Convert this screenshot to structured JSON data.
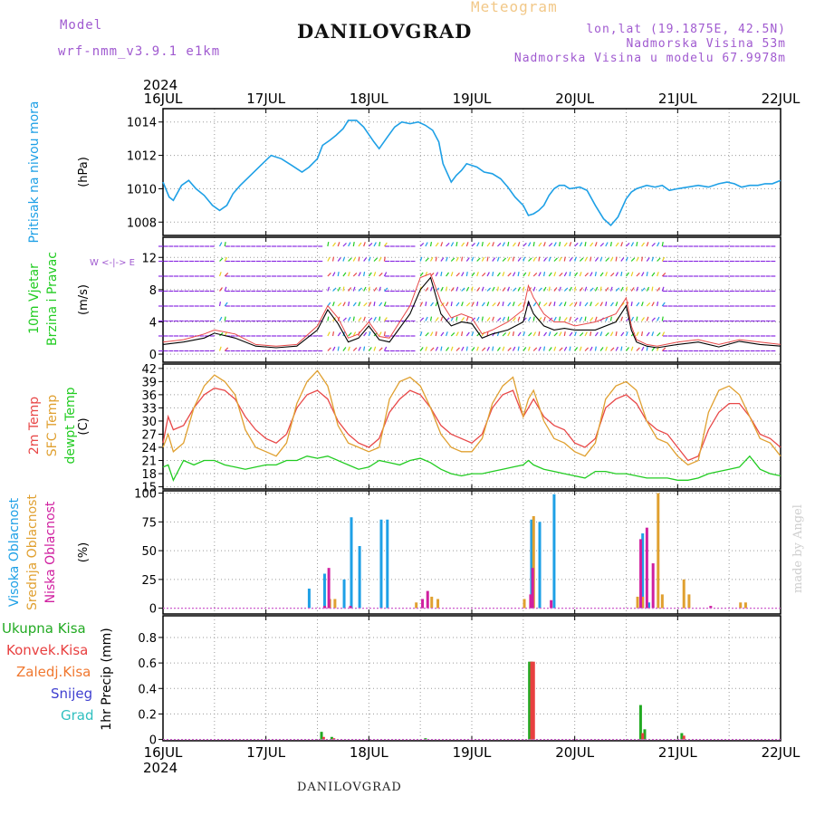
{
  "header": {
    "model_label": "Model",
    "model_name": "wrf-nmm_v3.9.1 e1km",
    "title": "DANILOVGRAD",
    "subtitle": "Meteogram",
    "coords": "lon,lat (19.1875E, 42.5N)",
    "elevation": "Nadmorska Visina 53m",
    "model_elevation": "Nadmorska Visina u modelu 67.9978m"
  },
  "footer": {
    "station": "DANILOVGRAD",
    "credit": "made by Angel"
  },
  "colors": {
    "pressure": "#1ea0e6",
    "temp2m": "#e84848",
    "sfc": "#e0a030",
    "dewpt": "#22cc22",
    "high": "#1ea0e6",
    "mid": "#e0a030",
    "low": "#d020a0",
    "total": "#22aa22",
    "conv": "#e84040",
    "frozen": "#f07830",
    "snow": "#4040d0",
    "hail": "#30c0c0"
  },
  "chart_data": [
    {
      "type": "line",
      "panel": "pressure",
      "ylabel_lines": [
        "Pritisak na nivou mora"
      ],
      "unit": "(hPa)",
      "x_ticks": [
        "16JUL",
        "17JUL",
        "18JUL",
        "19JUL",
        "20JUL",
        "21JUL",
        "22JUL"
      ],
      "year": "2024",
      "yticks": [
        "1008",
        "1010",
        "1012",
        "1014"
      ],
      "ylim": [
        1007.2,
        1014.8
      ],
      "x_days": [
        0,
        0.06,
        0.1,
        0.18,
        0.25,
        0.32,
        0.4,
        0.48,
        0.55,
        0.62,
        0.68,
        0.75,
        0.85,
        0.95,
        1.05,
        1.15,
        1.25,
        1.3,
        1.35,
        1.42,
        1.5,
        1.55,
        1.62,
        1.68,
        1.75,
        1.8,
        1.88,
        1.95,
        2.05,
        2.1,
        2.18,
        2.25,
        2.32,
        2.4,
        2.48,
        2.55,
        2.62,
        2.68,
        2.72,
        2.8,
        2.85,
        2.9,
        2.95,
        3.05,
        3.12,
        3.2,
        3.28,
        3.35,
        3.42,
        3.5,
        3.55,
        3.6,
        3.65,
        3.7,
        3.75,
        3.8,
        3.85,
        3.9,
        3.95,
        4.05,
        4.12,
        4.2,
        4.28,
        4.35,
        4.42,
        4.5,
        4.55,
        4.6,
        4.7,
        4.78,
        4.85,
        4.92,
        5.0,
        5.1,
        5.2,
        5.3,
        5.4,
        5.48,
        5.55,
        5.62,
        5.7,
        5.78,
        5.85,
        5.92,
        6.0
      ],
      "values": [
        1010.4,
        1009.5,
        1009.3,
        1010.2,
        1010.5,
        1010.0,
        1009.6,
        1009.0,
        1008.7,
        1009.0,
        1009.7,
        1010.2,
        1010.8,
        1011.4,
        1012.0,
        1011.8,
        1011.4,
        1011.2,
        1011.0,
        1011.3,
        1011.8,
        1012.6,
        1012.9,
        1013.2,
        1013.6,
        1014.1,
        1014.1,
        1013.7,
        1012.8,
        1012.4,
        1013.1,
        1013.7,
        1014.0,
        1013.9,
        1014.0,
        1013.8,
        1013.5,
        1012.8,
        1011.5,
        1010.4,
        1010.8,
        1011.1,
        1011.5,
        1011.3,
        1011.0,
        1010.9,
        1010.6,
        1010.1,
        1009.5,
        1009.0,
        1008.4,
        1008.5,
        1008.7,
        1009.0,
        1009.6,
        1010.0,
        1010.2,
        1010.2,
        1010.0,
        1010.1,
        1009.9,
        1009.0,
        1008.2,
        1007.8,
        1008.3,
        1009.4,
        1009.8,
        1010.0,
        1010.2,
        1010.1,
        1010.2,
        1009.9,
        1010.0,
        1010.1,
        1010.2,
        1010.1,
        1010.3,
        1010.4,
        1010.3,
        1010.1,
        1010.2,
        1010.2,
        1010.3,
        1010.3,
        1010.5
      ]
    },
    {
      "type": "wind",
      "panel": "wind",
      "ylabel_lines": [
        "10m Vjetar",
        "Brzina i Pravac"
      ],
      "unit": "(m/s)",
      "compass": "W <-|-> E",
      "yticks": [
        "0",
        "4",
        "8",
        "12"
      ],
      "ylim": [
        -1,
        14.5
      ],
      "x_days": [
        0,
        0.2,
        0.4,
        0.5,
        0.7,
        0.9,
        1.1,
        1.3,
        1.5,
        1.6,
        1.7,
        1.8,
        1.9,
        2.0,
        2.1,
        2.2,
        2.4,
        2.5,
        2.6,
        2.7,
        2.8,
        2.9,
        3.0,
        3.1,
        3.2,
        3.35,
        3.5,
        3.55,
        3.6,
        3.7,
        3.8,
        3.9,
        4.0,
        4.2,
        4.4,
        4.5,
        4.55,
        4.6,
        4.7,
        4.8,
        5.0,
        5.2,
        5.4,
        5.6,
        5.8,
        6.0
      ],
      "speed": [
        1.2,
        1.5,
        2.0,
        2.6,
        2.0,
        1.0,
        0.8,
        1.0,
        3.0,
        5.5,
        3.8,
        1.5,
        2.0,
        3.5,
        1.8,
        1.5,
        5.0,
        8.0,
        9.5,
        5.0,
        3.5,
        4.0,
        3.8,
        2.0,
        2.5,
        3.0,
        4.0,
        6.5,
        5.0,
        3.5,
        3.0,
        3.2,
        3.0,
        3.0,
        4.0,
        6.0,
        3.0,
        1.5,
        1.0,
        0.8,
        1.2,
        1.5,
        0.9,
        1.6,
        1.2,
        1.0
      ],
      "gust": [
        1.5,
        1.8,
        2.5,
        3.0,
        2.5,
        1.2,
        1.0,
        1.2,
        3.5,
        6.0,
        4.5,
        2.0,
        2.5,
        4.0,
        2.2,
        2.0,
        6.0,
        9.5,
        10.0,
        6.5,
        4.5,
        5.0,
        4.5,
        2.5,
        3.0,
        4.0,
        5.5,
        8.5,
        7.0,
        5.0,
        4.0,
        4.0,
        3.5,
        4.0,
        5.0,
        7.0,
        3.5,
        1.8,
        1.2,
        1.0,
        1.5,
        1.8,
        1.2,
        1.8,
        1.5,
        1.2
      ]
    },
    {
      "type": "line",
      "panel": "temperature",
      "ylabel_lines": [
        "2m Temp",
        "SFC Temp",
        "dewpt Temp"
      ],
      "unit": "(C)",
      "yticks": [
        "15",
        "18",
        "21",
        "24",
        "27",
        "30",
        "33",
        "36",
        "39",
        "42"
      ],
      "ylim": [
        14.5,
        43
      ],
      "x_days": [
        0,
        0.05,
        0.1,
        0.2,
        0.3,
        0.4,
        0.5,
        0.6,
        0.7,
        0.8,
        0.9,
        1.0,
        1.1,
        1.2,
        1.3,
        1.4,
        1.5,
        1.6,
        1.7,
        1.8,
        1.9,
        2.0,
        2.1,
        2.2,
        2.3,
        2.4,
        2.5,
        2.6,
        2.7,
        2.8,
        2.9,
        3.0,
        3.1,
        3.2,
        3.3,
        3.4,
        3.5,
        3.55,
        3.6,
        3.7,
        3.8,
        3.9,
        4.0,
        4.1,
        4.2,
        4.3,
        4.4,
        4.5,
        4.6,
        4.7,
        4.8,
        4.9,
        5.0,
        5.1,
        5.2,
        5.3,
        5.4,
        5.5,
        5.6,
        5.7,
        5.8,
        5.9,
        6.0
      ],
      "series": [
        {
          "name": "2m Temp",
          "values": [
            25,
            31,
            28,
            29,
            33,
            36,
            37.5,
            37,
            35,
            31,
            28,
            26,
            25,
            27,
            33,
            36,
            37,
            35,
            30,
            27,
            25,
            24,
            26,
            32,
            35,
            37,
            36,
            33,
            29,
            27,
            26,
            25,
            27,
            33,
            36,
            37,
            31,
            33,
            35,
            31,
            29,
            28,
            25,
            24,
            26,
            33,
            35,
            36,
            34,
            30,
            28,
            27,
            24,
            21,
            22,
            28,
            32,
            34,
            34,
            31,
            27,
            26,
            24
          ]
        },
        {
          "name": "SFC Temp",
          "values": [
            24,
            27,
            23,
            25,
            33,
            38,
            40.5,
            39,
            36,
            28,
            24,
            23,
            22,
            25,
            34,
            39,
            41.5,
            38,
            29,
            25,
            24,
            23,
            24,
            35,
            39,
            40,
            38,
            33,
            27,
            24,
            23,
            23,
            26,
            34,
            38,
            40,
            31,
            35,
            37,
            30,
            26,
            25,
            23,
            22,
            25,
            35,
            38,
            39,
            37,
            30,
            26,
            25,
            22,
            20,
            21,
            32,
            37,
            38,
            36,
            31,
            26,
            25,
            22
          ]
        },
        {
          "name": "dewpt Temp",
          "values": [
            19.5,
            20,
            16.5,
            21,
            20,
            21,
            21,
            20,
            19.5,
            19,
            19.5,
            20,
            20,
            21,
            21,
            22,
            21.5,
            22,
            21,
            20,
            19,
            19.5,
            21,
            20.5,
            20,
            21,
            21.5,
            20.5,
            19,
            18,
            17.5,
            18,
            18,
            18.5,
            19,
            19.5,
            20,
            21,
            20,
            19,
            18.5,
            18,
            17.5,
            17,
            18.5,
            18.5,
            18,
            18,
            17.5,
            17,
            17,
            17,
            16.5,
            16.5,
            17,
            18,
            18.5,
            19,
            19.5,
            22,
            19,
            18,
            17.5
          ]
        }
      ]
    },
    {
      "type": "bar",
      "panel": "cloud",
      "ylabel_lines": [
        "Visoka Oblacnost",
        "Srednja Oblacnost",
        "Niska Oblacnost"
      ],
      "unit": "(%)",
      "yticks": [
        "0",
        "25",
        "50",
        "75",
        "100"
      ],
      "ylim": [
        -5,
        102
      ],
      "series": [
        {
          "name": "Visoka Oblacnost",
          "x_days": [
            1.42,
            1.57,
            1.76,
            1.83,
            1.91,
            2.12,
            2.18,
            3.58,
            3.66,
            3.8,
            4.66,
            4.72
          ],
          "values": [
            17,
            30,
            25,
            79,
            54,
            77,
            77,
            77,
            75,
            99,
            65,
            5
          ]
        },
        {
          "name": "Srednja Oblacnost",
          "x_days": [
            1.61,
            1.66,
            2.45,
            2.6,
            2.66,
            3.5,
            3.59,
            4.6,
            4.65,
            4.8,
            4.84,
            5.05,
            5.1,
            5.6,
            5.65
          ],
          "values": [
            8,
            8,
            5,
            10,
            8,
            8,
            80,
            10,
            10,
            100,
            12,
            25,
            12,
            5,
            5
          ]
        },
        {
          "name": "Niska Oblacnost",
          "x_days": [
            1.55,
            1.59,
            1.8,
            2.5,
            2.55,
            3.55,
            3.57,
            3.75,
            4.62,
            4.68,
            4.74,
            5.3
          ],
          "values": [
            2,
            35,
            2,
            8,
            15,
            12,
            35,
            7,
            60,
            70,
            39,
            2
          ]
        }
      ]
    },
    {
      "type": "bar",
      "panel": "precip",
      "ylabel_lines": [
        "1hr Precip (mm)"
      ],
      "legend": [
        "Ukupna Kisa",
        "Konvek.Kisa",
        "Zaledj.Kisa",
        "Snijeg",
        "Grad"
      ],
      "yticks": [
        "0",
        "0.2",
        "0.4",
        "0.6",
        "0.8"
      ],
      "ylim": [
        -0.01,
        0.97
      ],
      "series": [
        {
          "name": "Ukupna Kisa",
          "x_days": [
            1.54,
            1.64,
            2.55,
            3.56,
            3.58,
            4.64,
            4.68,
            5.04
          ],
          "values": [
            0.06,
            0.02,
            0.01,
            0.61,
            0.61,
            0.27,
            0.08,
            0.05
          ]
        },
        {
          "name": "Konvek.Kisa",
          "x_days": [
            1.55,
            1.65,
            3.57,
            3.59,
            4.65,
            5.05
          ],
          "values": [
            0.02,
            0.01,
            0.61,
            0.61,
            0.05,
            0.03
          ]
        }
      ]
    }
  ]
}
